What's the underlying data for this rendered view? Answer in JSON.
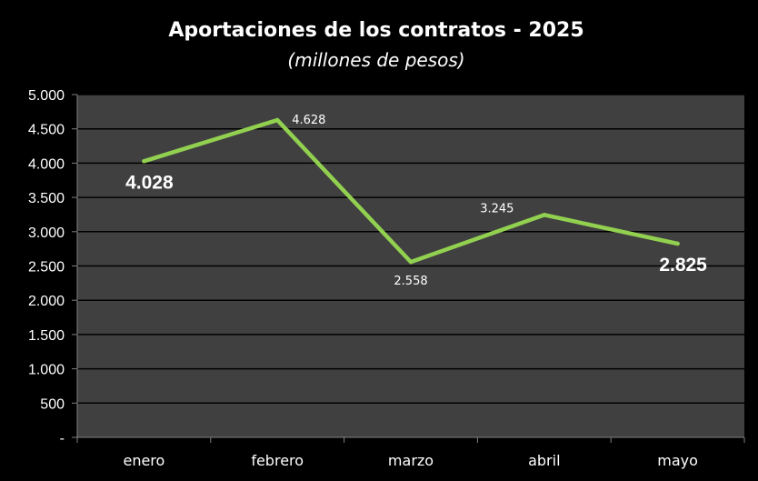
{
  "chart_data": {
    "type": "line",
    "title": "Aportaciones de los contratos - 2025",
    "subtitle": "(millones de pesos)",
    "categories": [
      "enero",
      "febrero",
      "marzo",
      "abril",
      "mayo"
    ],
    "series": [
      {
        "values": [
          4028,
          4628,
          2558,
          3245,
          2825
        ],
        "color": "#92d050"
      }
    ],
    "data_labels": [
      {
        "text": "4.028",
        "emphasis": "bold-large",
        "placement": "below"
      },
      {
        "text": "4.628",
        "emphasis": "normal",
        "placement": "right"
      },
      {
        "text": "2.558",
        "emphasis": "normal",
        "placement": "below"
      },
      {
        "text": "3.245",
        "emphasis": "normal",
        "placement": "above-left"
      },
      {
        "text": "2.825",
        "emphasis": "bold-large",
        "placement": "below"
      }
    ],
    "y_ticks": [
      {
        "value": 0,
        "label": "-"
      },
      {
        "value": 500,
        "label": "500"
      },
      {
        "value": 1000,
        "label": "1.000"
      },
      {
        "value": 1500,
        "label": "1.500"
      },
      {
        "value": 2000,
        "label": "2.000"
      },
      {
        "value": 2500,
        "label": "2.500"
      },
      {
        "value": 3000,
        "label": "3.000"
      },
      {
        "value": 3500,
        "label": "3.500"
      },
      {
        "value": 4000,
        "label": "4.000"
      },
      {
        "value": 4500,
        "label": "4.500"
      },
      {
        "value": 5000,
        "label": "5.000"
      }
    ],
    "ylim": [
      0,
      5000
    ],
    "grid": true,
    "legend": "none",
    "colors": {
      "background": "#000000",
      "plot_area": "#404040",
      "gridline": "#000000",
      "text": "#ffffff",
      "line": "#92d050"
    }
  }
}
